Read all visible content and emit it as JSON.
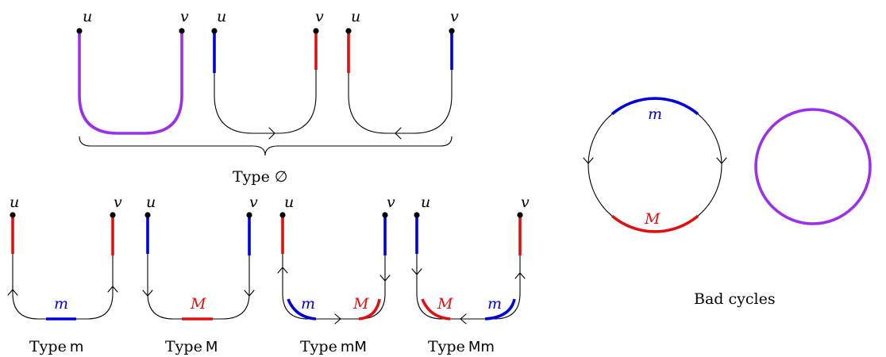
{
  "colors": {
    "blue": "#0000dd",
    "red": "#e01010",
    "purple": "#9b30e6",
    "black": "#000000"
  },
  "labels": {
    "u": "u",
    "v": "v",
    "m": "m",
    "M": "M"
  },
  "captions": {
    "type_empty_prefix": "Type",
    "type_empty_symbol": "∅",
    "type_prefix": "Type",
    "type_m": "m",
    "type_M": "M",
    "type_mM": "mM",
    "type_Mm": "Mm",
    "bad_cycles": "Bad cycles"
  }
}
